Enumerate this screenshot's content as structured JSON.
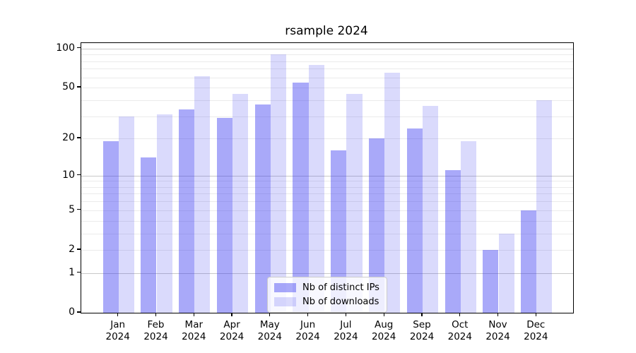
{
  "title": "rsample 2024",
  "chart_data": {
    "type": "bar",
    "title": "rsample 2024",
    "categories": [
      "Jan 2024",
      "Feb 2024",
      "Mar 2024",
      "Apr 2024",
      "May 2024",
      "Jun 2024",
      "Jul 2024",
      "Aug 2024",
      "Sep 2024",
      "Oct 2024",
      "Nov 2024",
      "Dec 2024"
    ],
    "series": [
      {
        "name": "Nb of distinct IPs",
        "color": "rgba(50,50,240,0.42)",
        "values": [
          19,
          14,
          34,
          29,
          37,
          55,
          16,
          20,
          24,
          11,
          2,
          5
        ]
      },
      {
        "name": "Nb of downloads",
        "color": "rgba(50,50,240,0.18)",
        "values": [
          30,
          31,
          61,
          45,
          90,
          75,
          45,
          65,
          36,
          19,
          3,
          40
        ]
      }
    ],
    "xlabel": "",
    "ylabel": "",
    "yscale": "log1p",
    "ylim": [
      0,
      110
    ],
    "yticks": [
      100,
      50,
      20,
      10,
      5,
      2,
      1,
      0
    ],
    "major_gridlines": [
      1,
      10,
      100
    ],
    "minor_gridlines": [
      2,
      3,
      4,
      5,
      6,
      7,
      8,
      9,
      20,
      30,
      40,
      50,
      60,
      70,
      80,
      90
    ],
    "grid": true,
    "legend_position": "lower center"
  },
  "colors": {
    "bar_distinct_ips": "rgba(50,50,240,0.42)",
    "bar_downloads": "rgba(50,50,240,0.18)",
    "grid_major": "#c9c9c9",
    "grid_minor": "#ebebeb",
    "spine": "#000000",
    "legend_border": "#cccccc"
  }
}
